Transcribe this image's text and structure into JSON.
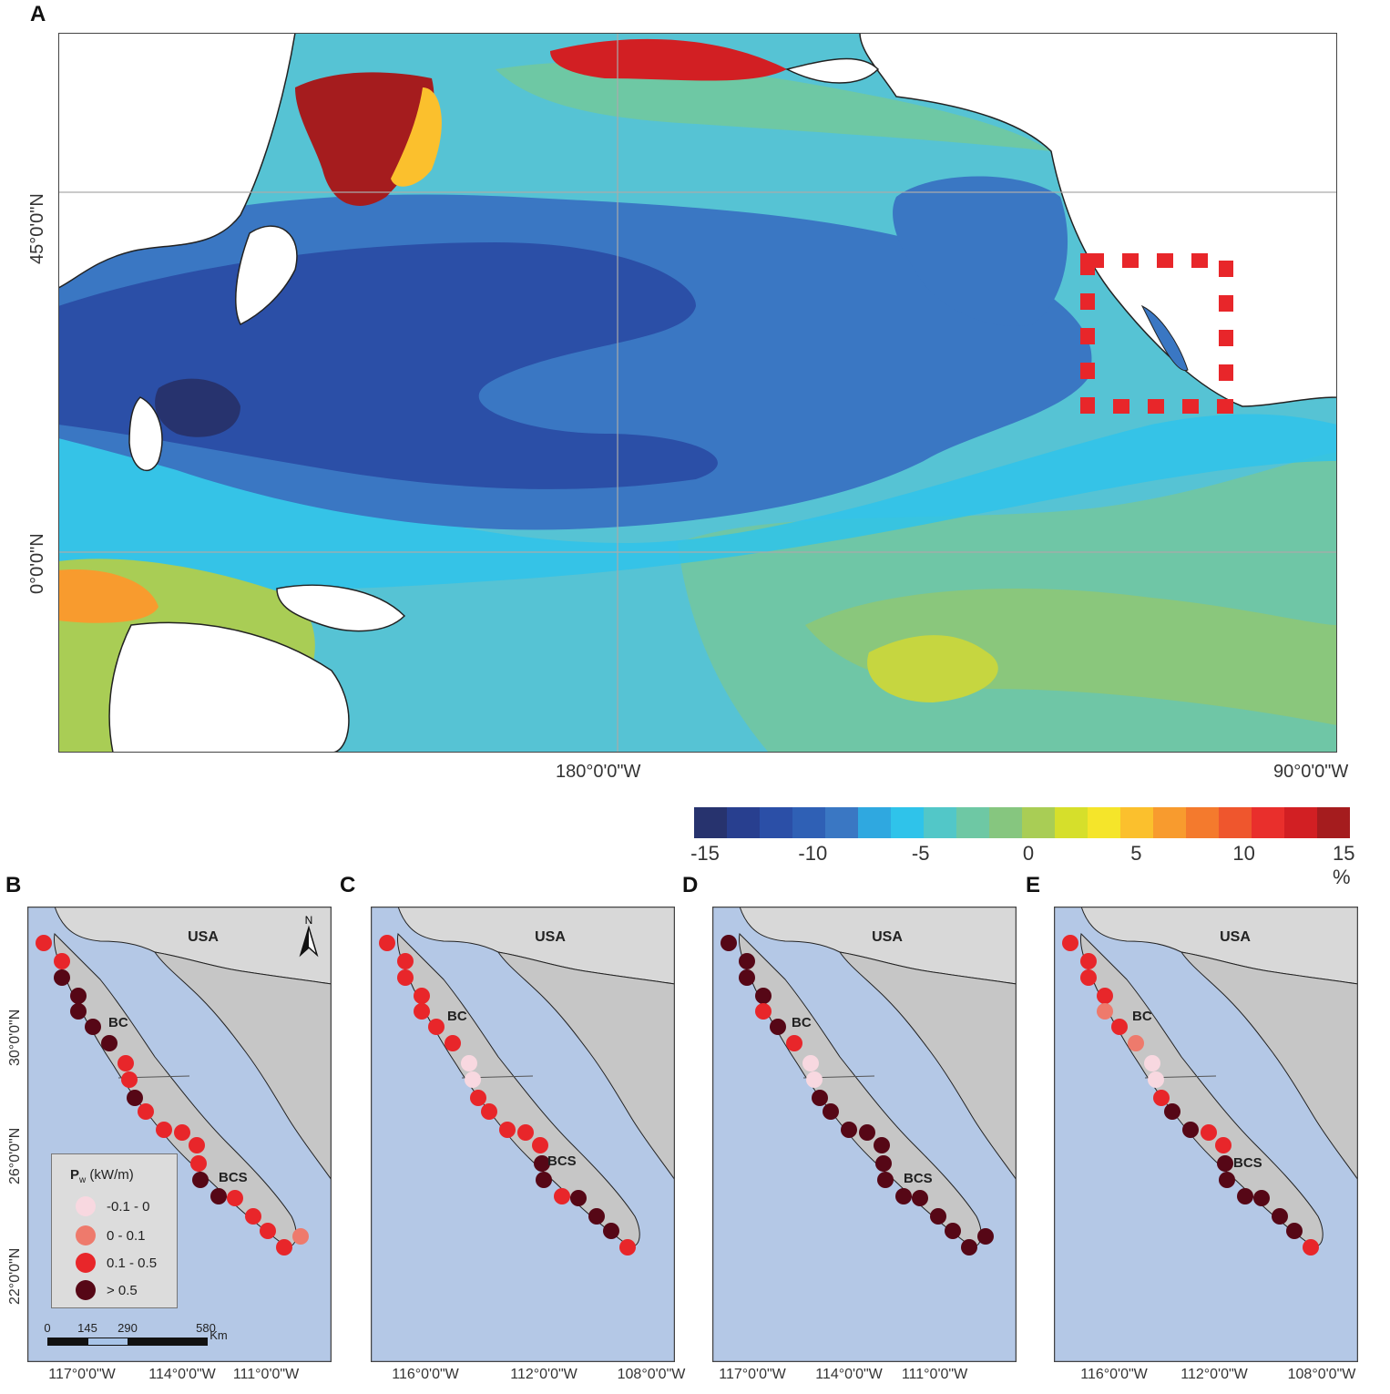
{
  "panels": {
    "A": "A",
    "B": "B",
    "C": "C",
    "D": "D",
    "E": "E"
  },
  "map_a": {
    "lat_labels": [
      "45°0'0\"N",
      "0°0'0\"N"
    ],
    "lon_labels": [
      "180°0'0\"W",
      "90°0'0\"W"
    ],
    "region_box_color": "#e8262a"
  },
  "colorbar": {
    "colors": [
      "#27336e",
      "#283f8f",
      "#2b4fa7",
      "#2f60b5",
      "#3a77c3",
      "#2fa8e0",
      "#2fc3ea",
      "#52c7c8",
      "#6ec8a4",
      "#86c67f",
      "#a9cd55",
      "#d6df2b",
      "#f5e52a",
      "#fbc02d",
      "#f89b2e",
      "#f47a2d",
      "#ef562d",
      "#e92f2c",
      "#d21f23",
      "#a51c1e"
    ],
    "tick_labels": [
      "-15",
      "-10",
      "-5",
      "0",
      "5",
      "10",
      "15 %"
    ],
    "tick_values": [
      -15,
      -10,
      -5,
      0,
      5,
      10,
      15
    ]
  },
  "small_maps": {
    "country_label": "USA",
    "state_bc": "BC",
    "state_bcs": "BCS",
    "north_arrow": "N",
    "lat_labels": [
      "30°0'0\"N",
      "26°0'0\"N",
      "22°0'0\"N"
    ],
    "lon_labels_b": [
      "117°0'0\"W",
      "114°0'0\"W",
      "111°0'0\"W"
    ],
    "lon_labels_c": [
      "116°0'0\"W",
      "112°0'0\"W",
      "108°0'0\"W"
    ],
    "lon_labels_d": [
      "117°0'0\"W",
      "114°0'0\"W",
      "111°0'0\"W"
    ],
    "lon_labels_e": [
      "116°0'0\"W",
      "112°0'0\"W",
      "108°0'0\"W"
    ],
    "category_colors": {
      "neg": "#f8d8e0",
      "low": "#ee7a6c",
      "mid": "#e8262a",
      "high": "#560716"
    },
    "panels": {
      "B": [
        "mid",
        "mid",
        "high",
        "high",
        "high",
        "high",
        "high",
        "mid",
        "mid",
        "high",
        "mid",
        "mid",
        "mid",
        "mid",
        "mid",
        "high",
        "high",
        "mid",
        "mid",
        "mid",
        "mid",
        "low"
      ],
      "C": [
        "mid",
        "mid",
        "mid",
        "mid",
        "mid",
        "mid",
        "mid",
        "neg",
        "neg",
        "mid",
        "mid",
        "mid",
        "mid",
        "mid",
        "high",
        "high",
        "mid",
        "high",
        "high",
        "high",
        "mid"
      ],
      "D": [
        "high",
        "high",
        "high",
        "high",
        "mid",
        "high",
        "mid",
        "neg",
        "neg",
        "high",
        "high",
        "high",
        "high",
        "high",
        "high",
        "high",
        "high",
        "high",
        "high",
        "high",
        "high",
        "high"
      ],
      "E": [
        "mid",
        "mid",
        "mid",
        "mid",
        "low",
        "mid",
        "low",
        "neg",
        "neg",
        "mid",
        "high",
        "high",
        "mid",
        "mid",
        "high",
        "high",
        "high",
        "high",
        "high",
        "high",
        "mid"
      ]
    }
  },
  "legend": {
    "title_main": "P",
    "title_sub": "w",
    "title_unit": " (kW/m)",
    "items": [
      {
        "label": "-0.1 - 0",
        "color": "#f8d8e0"
      },
      {
        "label": "0 - 0.1",
        "color": "#ee7a6c"
      },
      {
        "label": "0.1 - 0.5",
        "color": "#e8262a"
      },
      {
        "label": "> 0.5",
        "color": "#560716"
      }
    ]
  },
  "scalebar": {
    "ticks": [
      "0",
      "145",
      "290",
      "580"
    ],
    "unit": "Km"
  }
}
